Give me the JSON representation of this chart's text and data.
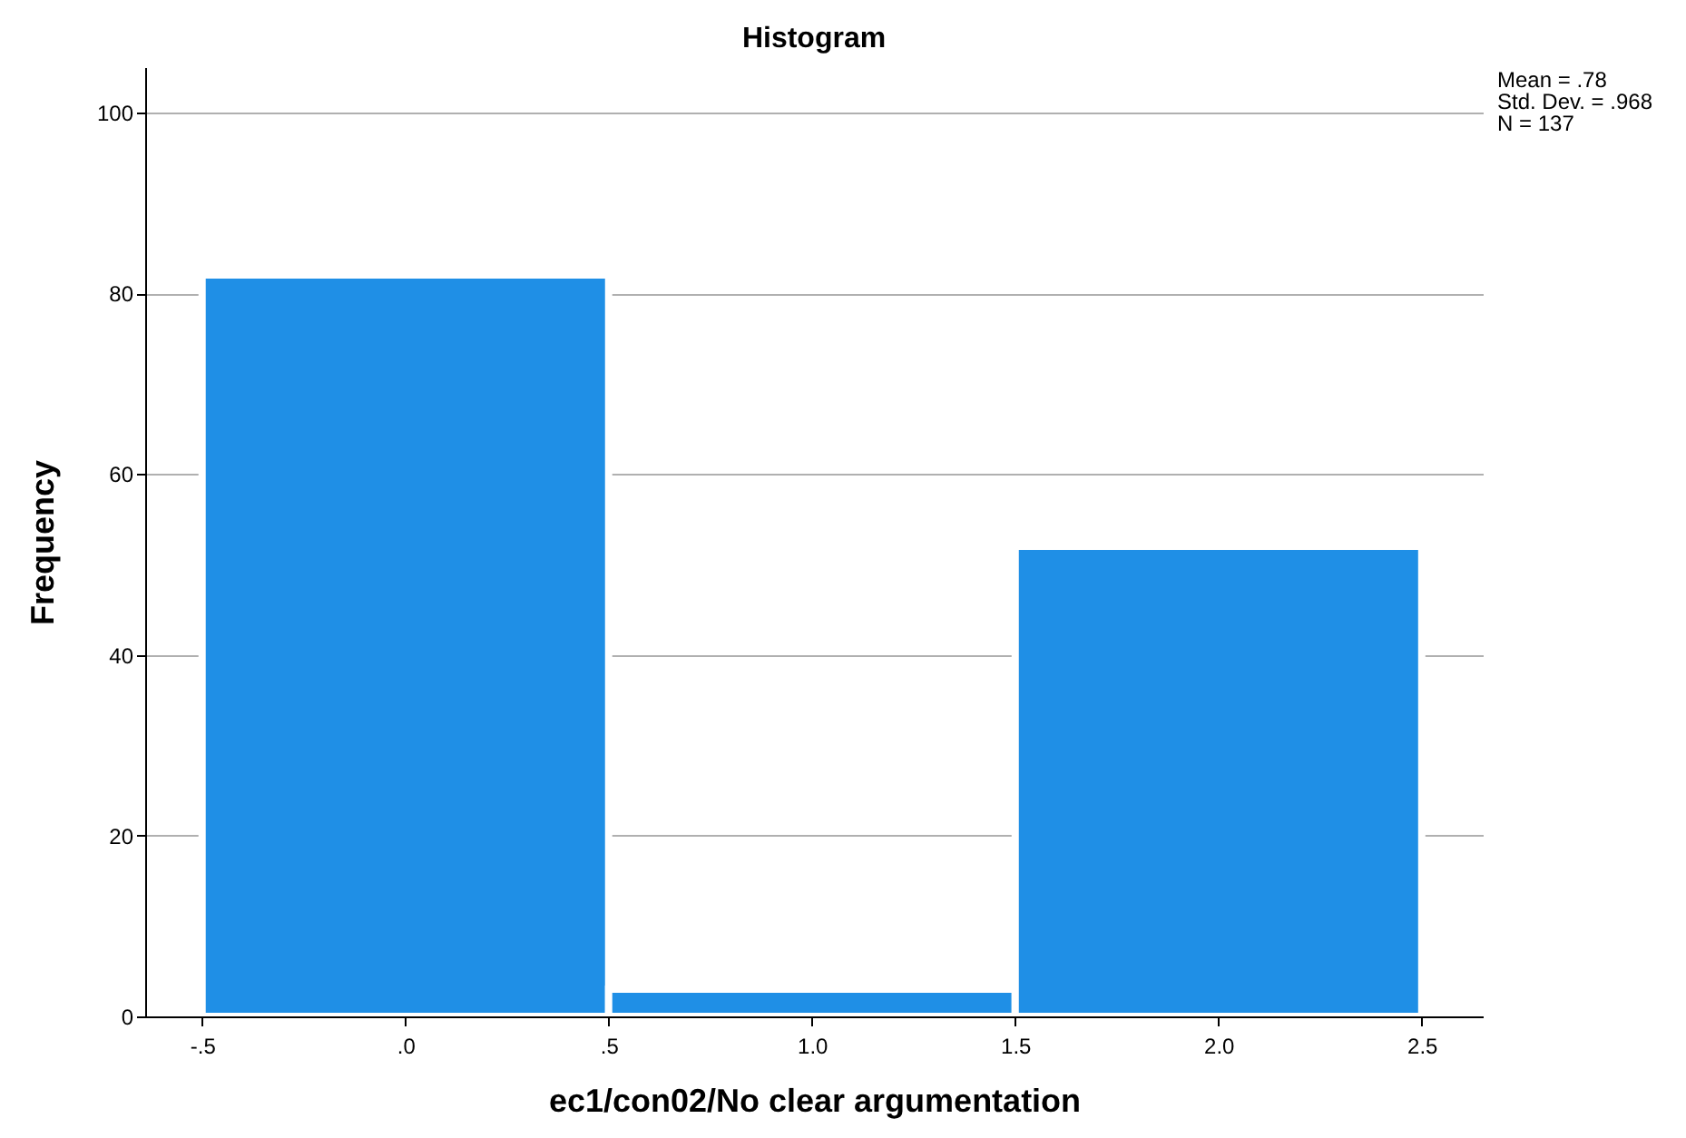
{
  "chart_data": {
    "type": "histogram",
    "title": "Histogram",
    "xlabel": "ec1/con02/No clear argumentation",
    "ylabel": "Frequency",
    "bins": [
      -0.5,
      0.5,
      1.5,
      2.5
    ],
    "values": [
      82,
      3,
      52
    ],
    "color": "#1f8fe6",
    "xlim": [
      -0.64,
      2.65
    ],
    "xticks": [
      {
        "value": -0.5,
        "label": "-.5"
      },
      {
        "value": 0,
        "label": ".0"
      },
      {
        "value": 0.5,
        "label": ".5"
      },
      {
        "value": 1,
        "label": "1.0"
      },
      {
        "value": 1.5,
        "label": "1.5"
      },
      {
        "value": 2,
        "label": "2.0"
      },
      {
        "value": 2.5,
        "label": "2.5"
      }
    ],
    "ylim": [
      0,
      105
    ],
    "yticks": [
      0,
      20,
      40,
      60,
      80,
      100
    ],
    "grid": "y",
    "annotations": [
      "Mean = .78",
      "Std. Dev. = .968",
      "N = 137"
    ]
  }
}
